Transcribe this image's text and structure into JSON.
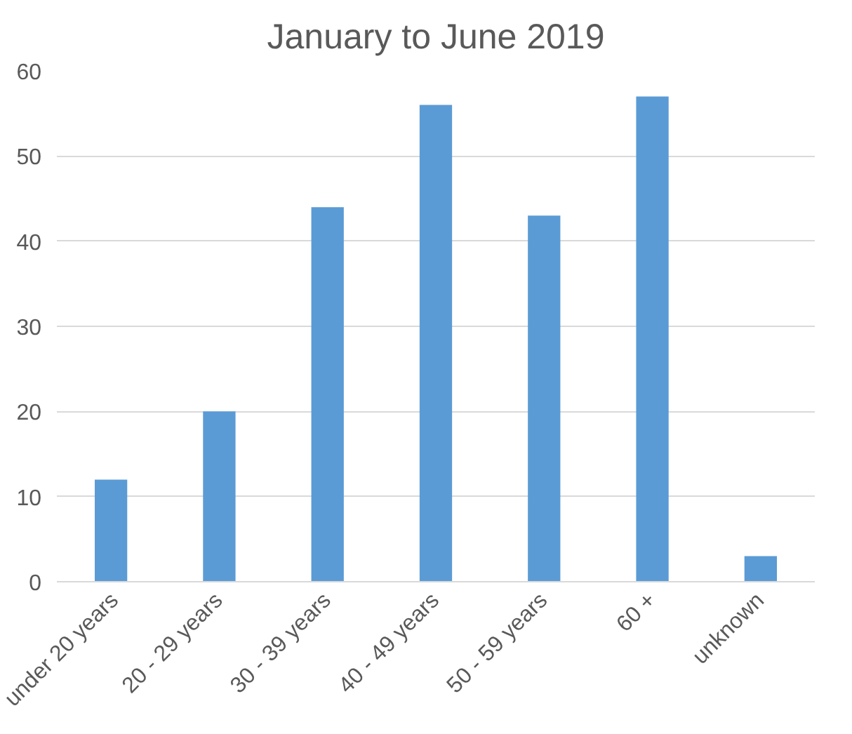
{
  "chart_data": {
    "type": "bar",
    "title": "January to June 2019",
    "categories": [
      "under 20 years",
      "20 - 29 years",
      "30 - 39 years",
      "40 - 49 years",
      "50 - 59 years",
      "60 +",
      "unknown"
    ],
    "values": [
      12,
      20,
      44,
      56,
      43,
      57,
      3
    ],
    "color": "#5b9bd5",
    "ylim": [
      0,
      60
    ],
    "yticks": [
      0,
      10,
      20,
      30,
      40,
      50,
      60
    ],
    "grid": "y"
  }
}
